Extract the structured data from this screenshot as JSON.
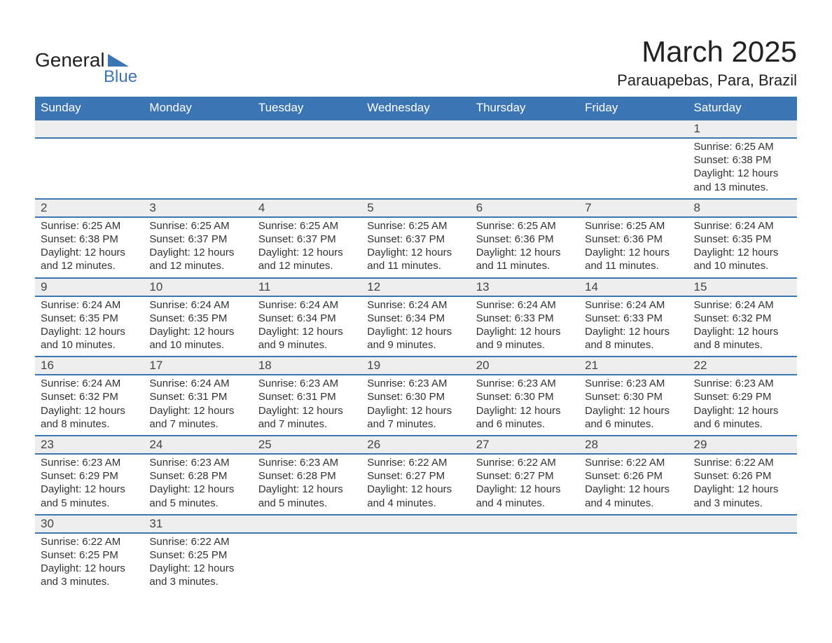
{
  "logo": {
    "text_general": "General",
    "text_blue": "Blue",
    "icon_color": "#3b75b3"
  },
  "title": "March 2025",
  "location": "Parauapebas, Para, Brazil",
  "colors": {
    "header_bg": "#3b75b3",
    "header_fg": "#ffffff",
    "daynum_bg": "#eeeeee",
    "row_border": "#3b75b3",
    "text": "#333333"
  },
  "day_headers": [
    "Sunday",
    "Monday",
    "Tuesday",
    "Wednesday",
    "Thursday",
    "Friday",
    "Saturday"
  ],
  "weeks": [
    [
      null,
      null,
      null,
      null,
      null,
      null,
      {
        "n": "1",
        "sr": "6:25 AM",
        "ss": "6:38 PM",
        "dl": "12 hours and 13 minutes."
      }
    ],
    [
      {
        "n": "2",
        "sr": "6:25 AM",
        "ss": "6:38 PM",
        "dl": "12 hours and 12 minutes."
      },
      {
        "n": "3",
        "sr": "6:25 AM",
        "ss": "6:37 PM",
        "dl": "12 hours and 12 minutes."
      },
      {
        "n": "4",
        "sr": "6:25 AM",
        "ss": "6:37 PM",
        "dl": "12 hours and 12 minutes."
      },
      {
        "n": "5",
        "sr": "6:25 AM",
        "ss": "6:37 PM",
        "dl": "12 hours and 11 minutes."
      },
      {
        "n": "6",
        "sr": "6:25 AM",
        "ss": "6:36 PM",
        "dl": "12 hours and 11 minutes."
      },
      {
        "n": "7",
        "sr": "6:25 AM",
        "ss": "6:36 PM",
        "dl": "12 hours and 11 minutes."
      },
      {
        "n": "8",
        "sr": "6:24 AM",
        "ss": "6:35 PM",
        "dl": "12 hours and 10 minutes."
      }
    ],
    [
      {
        "n": "9",
        "sr": "6:24 AM",
        "ss": "6:35 PM",
        "dl": "12 hours and 10 minutes."
      },
      {
        "n": "10",
        "sr": "6:24 AM",
        "ss": "6:35 PM",
        "dl": "12 hours and 10 minutes."
      },
      {
        "n": "11",
        "sr": "6:24 AM",
        "ss": "6:34 PM",
        "dl": "12 hours and 9 minutes."
      },
      {
        "n": "12",
        "sr": "6:24 AM",
        "ss": "6:34 PM",
        "dl": "12 hours and 9 minutes."
      },
      {
        "n": "13",
        "sr": "6:24 AM",
        "ss": "6:33 PM",
        "dl": "12 hours and 9 minutes."
      },
      {
        "n": "14",
        "sr": "6:24 AM",
        "ss": "6:33 PM",
        "dl": "12 hours and 8 minutes."
      },
      {
        "n": "15",
        "sr": "6:24 AM",
        "ss": "6:32 PM",
        "dl": "12 hours and 8 minutes."
      }
    ],
    [
      {
        "n": "16",
        "sr": "6:24 AM",
        "ss": "6:32 PM",
        "dl": "12 hours and 8 minutes."
      },
      {
        "n": "17",
        "sr": "6:24 AM",
        "ss": "6:31 PM",
        "dl": "12 hours and 7 minutes."
      },
      {
        "n": "18",
        "sr": "6:23 AM",
        "ss": "6:31 PM",
        "dl": "12 hours and 7 minutes."
      },
      {
        "n": "19",
        "sr": "6:23 AM",
        "ss": "6:30 PM",
        "dl": "12 hours and 7 minutes."
      },
      {
        "n": "20",
        "sr": "6:23 AM",
        "ss": "6:30 PM",
        "dl": "12 hours and 6 minutes."
      },
      {
        "n": "21",
        "sr": "6:23 AM",
        "ss": "6:30 PM",
        "dl": "12 hours and 6 minutes."
      },
      {
        "n": "22",
        "sr": "6:23 AM",
        "ss": "6:29 PM",
        "dl": "12 hours and 6 minutes."
      }
    ],
    [
      {
        "n": "23",
        "sr": "6:23 AM",
        "ss": "6:29 PM",
        "dl": "12 hours and 5 minutes."
      },
      {
        "n": "24",
        "sr": "6:23 AM",
        "ss": "6:28 PM",
        "dl": "12 hours and 5 minutes."
      },
      {
        "n": "25",
        "sr": "6:23 AM",
        "ss": "6:28 PM",
        "dl": "12 hours and 5 minutes."
      },
      {
        "n": "26",
        "sr": "6:22 AM",
        "ss": "6:27 PM",
        "dl": "12 hours and 4 minutes."
      },
      {
        "n": "27",
        "sr": "6:22 AM",
        "ss": "6:27 PM",
        "dl": "12 hours and 4 minutes."
      },
      {
        "n": "28",
        "sr": "6:22 AM",
        "ss": "6:26 PM",
        "dl": "12 hours and 4 minutes."
      },
      {
        "n": "29",
        "sr": "6:22 AM",
        "ss": "6:26 PM",
        "dl": "12 hours and 3 minutes."
      }
    ],
    [
      {
        "n": "30",
        "sr": "6:22 AM",
        "ss": "6:25 PM",
        "dl": "12 hours and 3 minutes."
      },
      {
        "n": "31",
        "sr": "6:22 AM",
        "ss": "6:25 PM",
        "dl": "12 hours and 3 minutes."
      },
      null,
      null,
      null,
      null,
      null
    ]
  ],
  "labels": {
    "sunrise": "Sunrise: ",
    "sunset": "Sunset: ",
    "daylight": "Daylight: "
  }
}
